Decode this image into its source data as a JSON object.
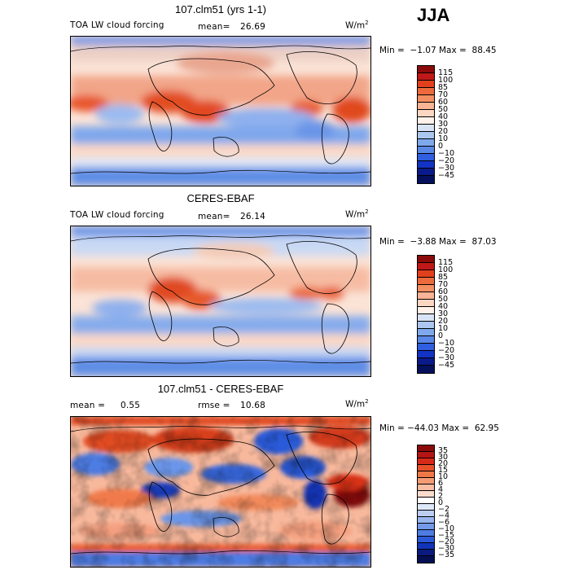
{
  "season": "JJA",
  "units_base": "W/m",
  "units_exp": "2",
  "panels": [
    {
      "title": "107.clm51 (yrs 1-1)",
      "left_label": "TOA LW cloud forcing",
      "stat_label": "mean=",
      "stat_value": "26.69",
      "min_label": "Min =",
      "min_value": "−1.07",
      "max_label": "Max =",
      "max_value": "88.45"
    },
    {
      "title": "CERES-EBAF",
      "left_label": "TOA LW cloud forcing",
      "stat_label": "mean=",
      "stat_value": "26.14",
      "min_label": "Min =",
      "min_value": "−3.88",
      "max_label": "Max =",
      "max_value": "87.03"
    },
    {
      "title": "107.clm51 - CERES-EBAF",
      "left_label": "mean =",
      "left_value": "0.55",
      "stat_label": "rmse =",
      "stat_value": "10.68",
      "min_label": "Min =",
      "min_value": "−44.03",
      "max_label": "Max =",
      "max_value": "62.95"
    }
  ],
  "colorbar_abs": {
    "labels": [
      "115",
      "100",
      "85",
      "70",
      "60",
      "50",
      "40",
      "30",
      "20",
      "10",
      "0",
      "−10",
      "−20",
      "−30",
      "−45"
    ],
    "colors": [
      "#8b0a0a",
      "#c01818",
      "#e2401c",
      "#ec6a3c",
      "#f48f62",
      "#f8b494",
      "#fbd7c2",
      "#fff2ea",
      "#d8e4f6",
      "#abc7f0",
      "#7fa9ec",
      "#5a88e6",
      "#2f5fe0",
      "#1233c4",
      "#0a1a8a",
      "#04105c"
    ]
  },
  "colorbar_diff": {
    "labels": [
      "35",
      "30",
      "20",
      "15",
      "10",
      "6",
      "4",
      "2",
      "0",
      "−2",
      "−4",
      "−6",
      "−10",
      "−15",
      "−20",
      "−30",
      "−35"
    ],
    "colors": [
      "#8b0a0a",
      "#b51414",
      "#d82a18",
      "#e8502a",
      "#f07848",
      "#f59c74",
      "#f9bea2",
      "#fcdccc",
      "#ffffff",
      "#dde8f8",
      "#bccff2",
      "#98b6ee",
      "#739ae8",
      "#4d7ce2",
      "#2a5ad8",
      "#1234b8",
      "#0a1a80",
      "#040e52"
    ]
  }
}
